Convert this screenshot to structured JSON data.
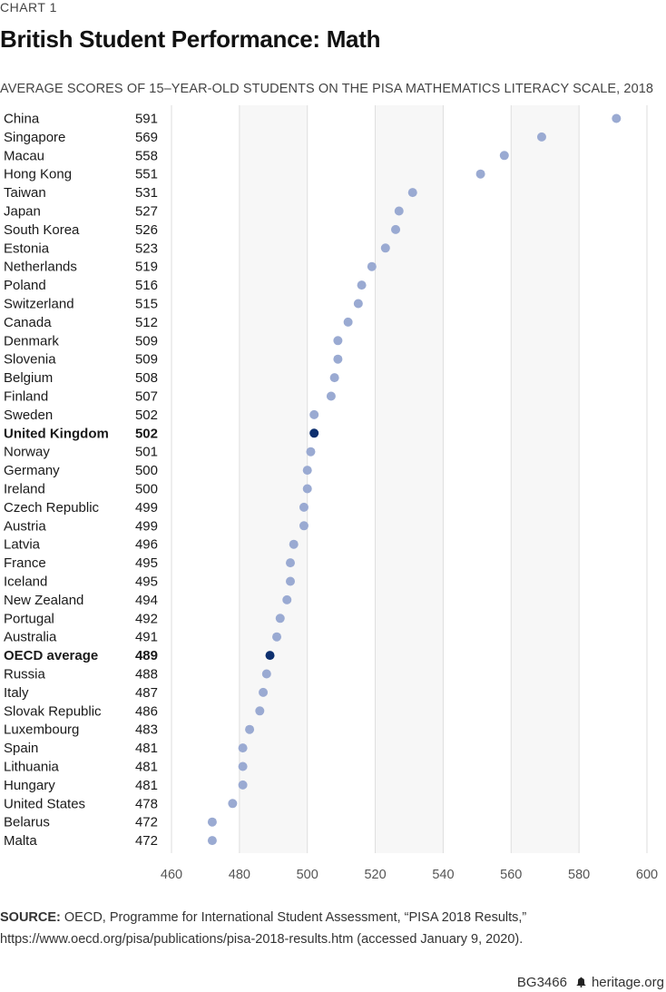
{
  "header": {
    "kicker": "CHART 1",
    "title": "British Student Performance: Math",
    "subtitle": "AVERAGE SCORES OF 15–YEAR-OLD STUDENTS ON THE PISA MATHEMATICS LITERACY SCALE, 2018"
  },
  "chart_data": {
    "type": "scatter",
    "title": "British Student Performance: Math",
    "subtitle": "AVERAGE SCORES OF 15–YEAR-OLD STUDENTS ON THE PISA MATHEMATICS LITERACY SCALE, 2018",
    "xlim": [
      460,
      600
    ],
    "xticks": [
      460,
      480,
      500,
      520,
      540,
      560,
      580,
      600
    ],
    "grid": true,
    "colors": {
      "default": "#9aaad2",
      "highlight": "#0d2f6e",
      "band": "#f7f7f7",
      "grid": "#dedede"
    },
    "items": [
      {
        "label": "China",
        "value": 591,
        "highlight": false
      },
      {
        "label": "Singapore",
        "value": 569,
        "highlight": false
      },
      {
        "label": "Macau",
        "value": 558,
        "highlight": false
      },
      {
        "label": "Hong Kong",
        "value": 551,
        "highlight": false
      },
      {
        "label": "Taiwan",
        "value": 531,
        "highlight": false
      },
      {
        "label": "Japan",
        "value": 527,
        "highlight": false
      },
      {
        "label": "South Korea",
        "value": 526,
        "highlight": false
      },
      {
        "label": "Estonia",
        "value": 523,
        "highlight": false
      },
      {
        "label": "Netherlands",
        "value": 519,
        "highlight": false
      },
      {
        "label": "Poland",
        "value": 516,
        "highlight": false
      },
      {
        "label": "Switzerland",
        "value": 515,
        "highlight": false
      },
      {
        "label": "Canada",
        "value": 512,
        "highlight": false
      },
      {
        "label": "Denmark",
        "value": 509,
        "highlight": false
      },
      {
        "label": "Slovenia",
        "value": 509,
        "highlight": false
      },
      {
        "label": "Belgium",
        "value": 508,
        "highlight": false
      },
      {
        "label": "Finland",
        "value": 507,
        "highlight": false
      },
      {
        "label": "Sweden",
        "value": 502,
        "highlight": false
      },
      {
        "label": "United Kingdom",
        "value": 502,
        "highlight": true
      },
      {
        "label": "Norway",
        "value": 501,
        "highlight": false
      },
      {
        "label": "Germany",
        "value": 500,
        "highlight": false
      },
      {
        "label": "Ireland",
        "value": 500,
        "highlight": false
      },
      {
        "label": "Czech Republic",
        "value": 499,
        "highlight": false
      },
      {
        "label": "Austria",
        "value": 499,
        "highlight": false
      },
      {
        "label": "Latvia",
        "value": 496,
        "highlight": false
      },
      {
        "label": "France",
        "value": 495,
        "highlight": false
      },
      {
        "label": "Iceland",
        "value": 495,
        "highlight": false
      },
      {
        "label": "New Zealand",
        "value": 494,
        "highlight": false
      },
      {
        "label": "Portugal",
        "value": 492,
        "highlight": false
      },
      {
        "label": "Australia",
        "value": 491,
        "highlight": false
      },
      {
        "label": "OECD average",
        "value": 489,
        "highlight": true
      },
      {
        "label": "Russia",
        "value": 488,
        "highlight": false
      },
      {
        "label": "Italy",
        "value": 487,
        "highlight": false
      },
      {
        "label": "Slovak Republic",
        "value": 486,
        "highlight": false
      },
      {
        "label": "Luxembourg",
        "value": 483,
        "highlight": false
      },
      {
        "label": "Spain",
        "value": 481,
        "highlight": false
      },
      {
        "label": "Lithuania",
        "value": 481,
        "highlight": false
      },
      {
        "label": "Hungary",
        "value": 481,
        "highlight": false
      },
      {
        "label": "United States",
        "value": 478,
        "highlight": false
      },
      {
        "label": "Belarus",
        "value": 472,
        "highlight": false
      },
      {
        "label": "Malta",
        "value": 472,
        "highlight": false
      }
    ]
  },
  "source": {
    "label": "SOURCE:",
    "text": " OECD, Programme for International Student Assessment, “PISA 2018 Results,” https://www.oecd.org/pisa/publications/pisa-2018-results.htm (accessed January 9, 2020)."
  },
  "footer": {
    "code": "BG3466",
    "site": "heritage.org",
    "logo_icon": "bell-icon"
  }
}
